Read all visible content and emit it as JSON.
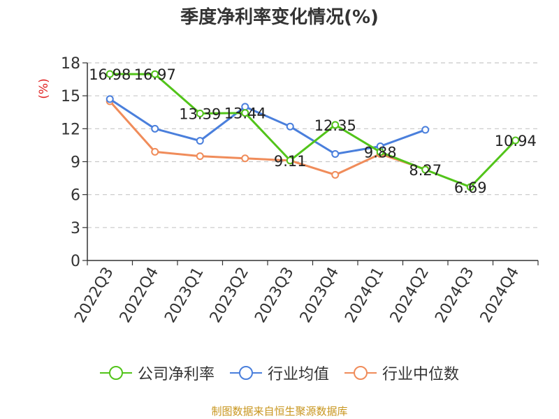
{
  "title": "季度净利率变化情况(%)",
  "source": "制图数据来自恒生聚源数据库",
  "chart_data": {
    "type": "line",
    "ylabel": "(%)",
    "xlabel": "",
    "ylim": [
      0,
      18
    ],
    "yticks": [
      0,
      3,
      6,
      9,
      12,
      15,
      18
    ],
    "grid": true,
    "legend_position": "bottom",
    "categories": [
      "2022Q3",
      "2022Q4",
      "2023Q1",
      "2023Q2",
      "2023Q3",
      "2023Q4",
      "2024Q1",
      "2024Q2",
      "2024Q3",
      "2024Q4"
    ],
    "series": [
      {
        "name": "公司净利率",
        "color": "#52c41a",
        "values": [
          16.98,
          16.97,
          13.39,
          13.44,
          9.11,
          12.35,
          9.88,
          8.27,
          6.69,
          10.94
        ],
        "labels": [
          "16.98",
          "16.97",
          "13.39",
          "13.44",
          "9.11",
          "12.35",
          "9.88",
          "8.27",
          "6.69",
          "10.94"
        ]
      },
      {
        "name": "行业均值",
        "color": "#4a7fdc",
        "values": [
          14.7,
          12.0,
          10.9,
          14.0,
          12.2,
          9.7,
          10.4,
          11.9,
          null,
          null
        ]
      },
      {
        "name": "行业中位数",
        "color": "#f08c5a",
        "values": [
          14.5,
          9.9,
          9.5,
          9.3,
          9.1,
          7.8,
          9.7,
          8.3,
          null,
          null
        ]
      }
    ]
  }
}
